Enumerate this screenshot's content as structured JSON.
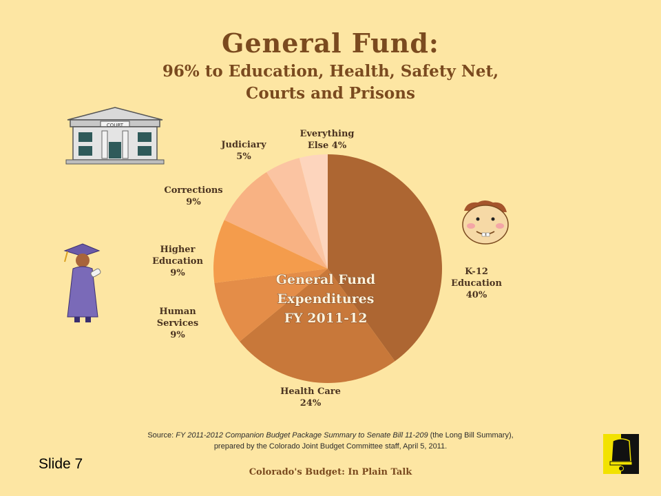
{
  "title": "General Fund:",
  "subtitle_line1": "96% to Education, Health, Safety Net,",
  "subtitle_line2": "Courts and Prisons",
  "chart_data": {
    "type": "pie",
    "center_label": [
      "General Fund",
      "Expenditures",
      "FY 2011-12"
    ],
    "slices": [
      {
        "label": [
          "K-12",
          "Education",
          "40%"
        ],
        "value": 40,
        "color": "#ad6632"
      },
      {
        "label": [
          "Health Care",
          "24%"
        ],
        "value": 24,
        "color": "#c8783a"
      },
      {
        "label": [
          "Human",
          "Services",
          "9%"
        ],
        "value": 9,
        "color": "#e48d48"
      },
      {
        "label": [
          "Higher",
          "Education",
          "9%"
        ],
        "value": 9,
        "color": "#f49c4c"
      },
      {
        "label": [
          "Corrections",
          "9%"
        ],
        "value": 9,
        "color": "#f8b283"
      },
      {
        "label": [
          "Judiciary",
          "5%"
        ],
        "value": 5,
        "color": "#fbc4a2"
      },
      {
        "label": [
          "Everything",
          "Else 4%"
        ],
        "value": 4,
        "color": "#fdd5bd"
      }
    ]
  },
  "source": {
    "prefix": "Source: ",
    "italic": "FY 2011-2012 Companion Budget Package Summary to Senate Bill 11-209",
    "suffix": " (the Long Bill Summary),",
    "line2": "prepared by the Colorado Joint Budget Committee staff, April 5, 2011."
  },
  "slide_label": "Slide 7",
  "footer": "Colorado's Budget: In Plain Talk",
  "clipart": {
    "courthouse_sign": "COURT",
    "courthouse": "courthouse-icon",
    "graduate": "graduate-icon",
    "child": "child-face-icon",
    "logo": "bell-logo-icon"
  }
}
